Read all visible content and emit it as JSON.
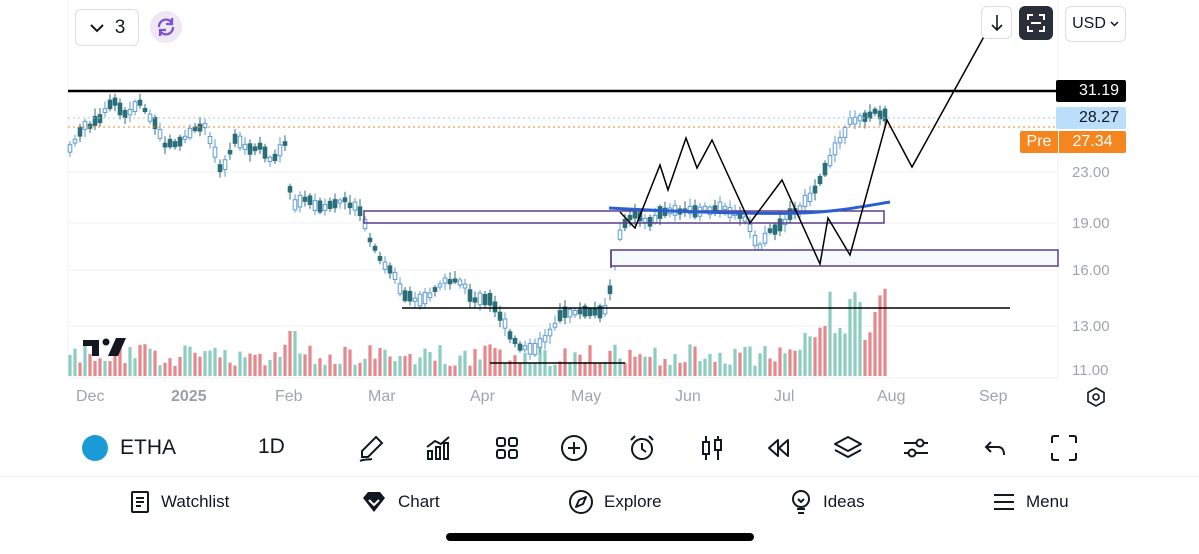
{
  "app": {
    "interval_count": "3",
    "currency": "USD",
    "symbol": "ETHA",
    "timeframe": "1D",
    "logo_text": "17"
  },
  "price_axis": {
    "ticks": [
      "23.00",
      "19.00",
      "16.00",
      "13.00",
      "11.00"
    ],
    "tag_last": "31.19",
    "tag_current": "28.27",
    "tag_pre_label": "Pre",
    "tag_pre_value": "27.34"
  },
  "time_axis": {
    "labels": [
      "Dec",
      "2025",
      "Feb",
      "Mar",
      "Apr",
      "May",
      "Jun",
      "Jul",
      "Aug",
      "Sep"
    ]
  },
  "toolbar": {
    "icons": [
      "brush-icon",
      "indicators-icon",
      "templates-icon",
      "add-icon",
      "alert-icon",
      "bar-style-icon",
      "replay-icon",
      "layers-icon",
      "settings-icon",
      "undo-icon",
      "fullscreen-icon"
    ]
  },
  "bottom_nav": {
    "items": [
      {
        "label": "Watchlist",
        "icon": "watchlist-icon"
      },
      {
        "label": "Chart",
        "icon": "chart-icon"
      },
      {
        "label": "Explore",
        "icon": "explore-icon"
      },
      {
        "label": "Ideas",
        "icon": "ideas-icon"
      },
      {
        "label": "Menu",
        "icon": "menu-icon"
      }
    ]
  },
  "colors": {
    "up": "#5b9bd5",
    "down": "#2a6e7a",
    "volume_up": "#7fc8b9",
    "volume_down": "#e37a7f",
    "pre_tag": "#f5861f",
    "current_tag": "#bbdefb",
    "black_tag": "#000000",
    "accent": "#b39ddb"
  }
}
